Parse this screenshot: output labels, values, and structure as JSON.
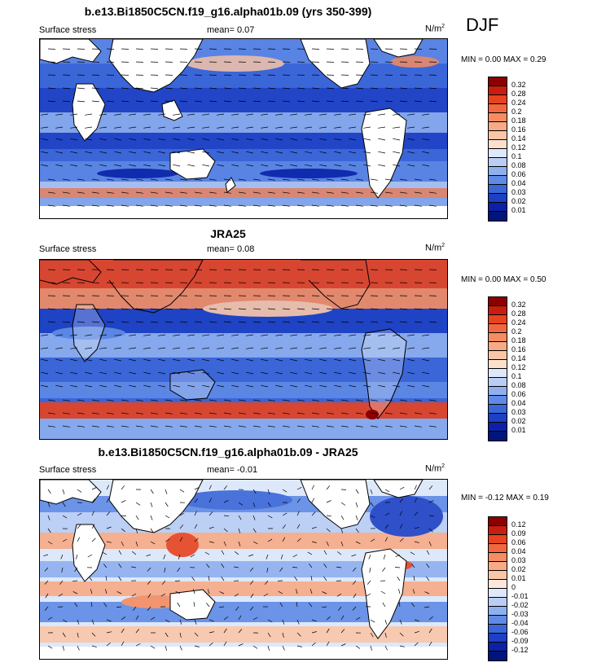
{
  "season": "DJF",
  "units_base": "N/m",
  "units_exp": "2",
  "panels": [
    {
      "title": "b.e13.Bi1850C5CN.f19_g16.alpha01b.09 (yrs 350-399)",
      "field": "Surface stress",
      "mean": "mean=   0.07",
      "minmax": "MIN =   0.00 MAX =   0.29",
      "colorbar": {
        "labels": [
          "0.32",
          "0.28",
          "0.24",
          "0.2",
          "0.18",
          "0.16",
          "0.14",
          "0.12",
          "0.1",
          "0.08",
          "0.06",
          "0.04",
          "0.03",
          "0.02",
          "0.01"
        ],
        "colors": [
          "#8b0000",
          "#c81e0f",
          "#e8431f",
          "#f2673f",
          "#f58c62",
          "#f7aa85",
          "#f9c6a8",
          "#fbe0cb",
          "#dde8fa",
          "#b9cdf5",
          "#8fb0ef",
          "#5f8ae6",
          "#3a66d8",
          "#1d40c4",
          "#0b21a8",
          "#00157a"
        ]
      }
    },
    {
      "title": "JRA25",
      "field": "Surface stress",
      "mean": "mean=   0.08",
      "minmax": "MIN =   0.00 MAX =   0.50",
      "colorbar": {
        "labels": [
          "0.32",
          "0.28",
          "0.24",
          "0.2",
          "0.18",
          "0.16",
          "0.14",
          "0.12",
          "0.1",
          "0.08",
          "0.06",
          "0.04",
          "0.03",
          "0.02",
          "0.01"
        ],
        "colors": [
          "#8b0000",
          "#c81e0f",
          "#e8431f",
          "#f2673f",
          "#f58c62",
          "#f7aa85",
          "#f9c6a8",
          "#fbe0cb",
          "#dde8fa",
          "#b9cdf5",
          "#8fb0ef",
          "#5f8ae6",
          "#3a66d8",
          "#1d40c4",
          "#0b21a8",
          "#00157a"
        ]
      }
    },
    {
      "title": "b.e13.Bi1850C5CN.f19_g16.alpha01b.09 - JRA25",
      "field": "Surface stress",
      "mean": "mean=  -0.01",
      "minmax": "MIN =  -0.12 MAX =   0.19",
      "colorbar": {
        "labels": [
          "0.12",
          "0.09",
          "0.06",
          "0.04",
          "0.03",
          "0.02",
          "0.01",
          "0",
          "-0.01",
          "-0.02",
          "-0.03",
          "-0.04",
          "-0.06",
          "-0.09",
          "-0.12"
        ],
        "colors": [
          "#8b0000",
          "#c81e0f",
          "#e8431f",
          "#f2673f",
          "#f58c62",
          "#f7aa85",
          "#f9c6a8",
          "#fbe8dc",
          "#dde8fa",
          "#b9cdf5",
          "#8fb0ef",
          "#5f8ae6",
          "#3a66d8",
          "#1d40c4",
          "#0b21a8",
          "#00157a"
        ]
      }
    }
  ]
}
